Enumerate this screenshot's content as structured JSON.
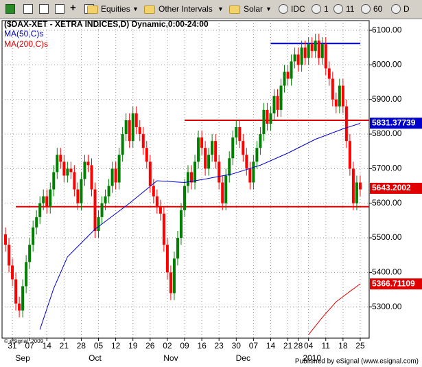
{
  "toolbar": [
    "Equities",
    "Other Intervals",
    "Solar",
    "IDC",
    "1",
    "11",
    "60",
    "D"
  ],
  "chart_data": {
    "type": "candlestick",
    "title": "($DAX-XET - XETRA INDICES,D) Dynamic,0:00-24:00",
    "copyright": "© eSignal, 2009",
    "publisher": "Published by eSignal (www.esignal.com)",
    "up_color": "#008000",
    "down_color": "#ff0000",
    "grid": true,
    "xlim": [
      -1,
      105.6
    ],
    "ylim": [
      5210,
      6128
    ],
    "yticks": [
      {
        "value": 5300,
        "label": "5300.00"
      },
      {
        "value": 5400,
        "label": "5400.00"
      },
      {
        "value": 5500,
        "label": "5500.00"
      },
      {
        "value": 5600,
        "label": "5600.00"
      },
      {
        "value": 5700,
        "label": "5700.00"
      },
      {
        "value": 5800,
        "label": "5800.00"
      },
      {
        "value": 5900,
        "label": "5900.00"
      },
      {
        "value": 6000,
        "label": "6000.00"
      },
      {
        "value": 6100,
        "label": "6100.00"
      }
    ],
    "xticks": [
      {
        "value": 2,
        "label": "31"
      },
      {
        "value": 7,
        "label": "07"
      },
      {
        "value": 12,
        "label": "14"
      },
      {
        "value": 17,
        "label": "21"
      },
      {
        "value": 22,
        "label": "28"
      },
      {
        "value": 27,
        "label": "05"
      },
      {
        "value": 32,
        "label": "12"
      },
      {
        "value": 37,
        "label": "19"
      },
      {
        "value": 42,
        "label": "26"
      },
      {
        "value": 47,
        "label": "02"
      },
      {
        "value": 52,
        "label": "09"
      },
      {
        "value": 57,
        "label": "16"
      },
      {
        "value": 62,
        "label": "23"
      },
      {
        "value": 67,
        "label": "30"
      },
      {
        "value": 72,
        "label": "07"
      },
      {
        "value": 77,
        "label": "14"
      },
      {
        "value": 82,
        "label": "21"
      },
      {
        "value": 85,
        "label": "28"
      },
      {
        "value": 88,
        "label": "04"
      },
      {
        "value": 93,
        "label": "11"
      },
      {
        "value": 98,
        "label": "18"
      },
      {
        "value": 103,
        "label": "25"
      }
    ],
    "months": [
      {
        "value": 5,
        "label": "Sep"
      },
      {
        "value": 26,
        "label": "Oct"
      },
      {
        "value": 48,
        "label": "Nov"
      },
      {
        "value": 69,
        "label": "Dec"
      },
      {
        "value": 89,
        "label": "2010"
      }
    ],
    "open": [
      5510,
      5480,
      5420,
      5380,
      5310,
      5290,
      5360,
      5430,
      5480,
      5530,
      5560,
      5600,
      5620,
      5590,
      5640,
      5690,
      5740,
      5720,
      5680,
      5700,
      5690,
      5640,
      5600,
      5670,
      5720,
      5710,
      5640,
      5520,
      5560,
      5600,
      5620,
      5650,
      5700,
      5660,
      5740,
      5800,
      5840,
      5780,
      5860,
      5820,
      5800,
      5760,
      5720,
      5650,
      5620,
      5590,
      5570,
      5480,
      5400,
      5340,
      5440,
      5500,
      5580,
      5650,
      5690,
      5660,
      5720,
      5790,
      5760,
      5700,
      5740,
      5780,
      5720,
      5660,
      5600,
      5680,
      5730,
      5790,
      5820,
      5780,
      5740,
      5700,
      5660,
      5720,
      5760,
      5800,
      5870,
      5830,
      5860,
      5910,
      5870,
      5940,
      5980,
      5960,
      6010,
      6030,
      6000,
      6050,
      6020,
      6060,
      6040,
      6070,
      6020,
      6060,
      5990,
      5960,
      5900,
      5880,
      5940,
      5880,
      5780,
      5700,
      5600,
      5660
    ],
    "high": [
      5530,
      5500,
      5440,
      5400,
      5330,
      5380,
      5450,
      5500,
      5550,
      5580,
      5620,
      5640,
      5640,
      5660,
      5710,
      5760,
      5760,
      5740,
      5720,
      5720,
      5710,
      5660,
      5690,
      5740,
      5740,
      5730,
      5660,
      5580,
      5620,
      5640,
      5670,
      5720,
      5720,
      5760,
      5820,
      5860,
      5860,
      5880,
      5880,
      5840,
      5820,
      5780,
      5740,
      5670,
      5640,
      5610,
      5590,
      5500,
      5420,
      5460,
      5520,
      5600,
      5670,
      5710,
      5710,
      5740,
      5810,
      5810,
      5780,
      5760,
      5800,
      5800,
      5740,
      5680,
      5700,
      5750,
      5810,
      5840,
      5840,
      5800,
      5760,
      5720,
      5740,
      5780,
      5820,
      5890,
      5890,
      5880,
      5930,
      5930,
      5960,
      6000,
      6000,
      6030,
      6050,
      6050,
      6070,
      6070,
      6080,
      6080,
      6090,
      6090,
      6080,
      6080,
      6010,
      5980,
      5920,
      5960,
      5960,
      5900,
      5800,
      5720,
      5680,
      5680
    ],
    "low": [
      5460,
      5400,
      5360,
      5290,
      5270,
      5270,
      5340,
      5410,
      5460,
      5510,
      5540,
      5580,
      5570,
      5570,
      5620,
      5670,
      5700,
      5660,
      5660,
      5670,
      5620,
      5580,
      5580,
      5650,
      5690,
      5620,
      5500,
      5500,
      5540,
      5580,
      5600,
      5630,
      5640,
      5640,
      5720,
      5780,
      5760,
      5760,
      5800,
      5780,
      5740,
      5700,
      5630,
      5600,
      5570,
      5550,
      5460,
      5380,
      5320,
      5320,
      5420,
      5480,
      5560,
      5630,
      5640,
      5640,
      5700,
      5740,
      5680,
      5680,
      5720,
      5700,
      5640,
      5580,
      5580,
      5660,
      5710,
      5770,
      5760,
      5720,
      5680,
      5640,
      5640,
      5700,
      5740,
      5780,
      5810,
      5810,
      5840,
      5850,
      5850,
      5920,
      5940,
      5940,
      5990,
      5980,
      5980,
      6000,
      6000,
      6020,
      6020,
      6000,
      6000,
      5970,
      5940,
      5880,
      5860,
      5860,
      5860,
      5760,
      5680,
      5580,
      5580,
      5620
    ],
    "close": [
      5480,
      5420,
      5380,
      5310,
      5290,
      5360,
      5430,
      5480,
      5530,
      5560,
      5600,
      5620,
      5590,
      5640,
      5690,
      5740,
      5720,
      5680,
      5700,
      5690,
      5640,
      5600,
      5670,
      5720,
      5710,
      5640,
      5520,
      5560,
      5600,
      5620,
      5650,
      5700,
      5660,
      5740,
      5800,
      5840,
      5780,
      5860,
      5820,
      5800,
      5760,
      5720,
      5650,
      5620,
      5590,
      5570,
      5480,
      5400,
      5340,
      5440,
      5500,
      5580,
      5650,
      5690,
      5660,
      5720,
      5790,
      5760,
      5700,
      5740,
      5780,
      5720,
      5660,
      5600,
      5680,
      5730,
      5790,
      5820,
      5780,
      5740,
      5700,
      5660,
      5720,
      5760,
      5800,
      5870,
      5830,
      5860,
      5910,
      5870,
      5940,
      5980,
      5960,
      6010,
      6030,
      6000,
      6050,
      6020,
      6060,
      6040,
      6070,
      6020,
      6060,
      5990,
      5960,
      5900,
      5880,
      5940,
      5880,
      5780,
      5700,
      5600,
      5660,
      5640
    ],
    "series": [
      {
        "name": "MA(50,C)s",
        "color": "#0000cc",
        "x": [
          10,
          14,
          18,
          26,
          36,
          44,
          52,
          58,
          66,
          74,
          82,
          90,
          98,
          103
        ],
        "values": [
          5235,
          5354,
          5445,
          5525,
          5600,
          5665,
          5660,
          5670,
          5685,
          5710,
          5745,
          5785,
          5815,
          5831
        ]
      },
      {
        "name": "MA(200,C)s",
        "color": "#e00000",
        "x": [
          88,
          92,
          96,
          100,
          103
        ],
        "values": [
          5220,
          5270,
          5315,
          5345,
          5367
        ]
      }
    ],
    "hlines": [
      {
        "value": 6062,
        "x": [
          77,
          103
        ],
        "color": "#0000cc"
      },
      {
        "value": 5840,
        "x": [
          52,
          105.6
        ],
        "color": "#e00000"
      },
      {
        "value": 5590,
        "x": [
          3,
          105.6
        ],
        "color": "#e00000"
      }
    ],
    "price_labels": [
      {
        "value": 5831.37739,
        "color": "#0000cc"
      },
      {
        "value": 5643.2002,
        "color": "#e00000"
      },
      {
        "value": 5366.71109,
        "color": "#e00000"
      }
    ]
  }
}
